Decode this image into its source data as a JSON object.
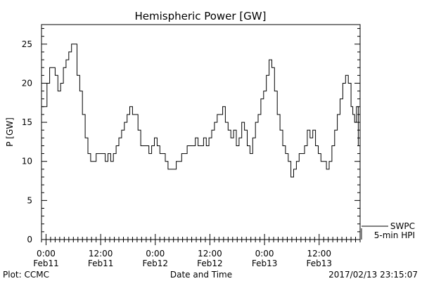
{
  "chart_data": {
    "type": "line",
    "title": "Hemispheric Power [GW]",
    "xlabel": "Date and Time",
    "ylabel": "P [GW]",
    "ylim": [
      0,
      27.5
    ],
    "y_ticks": [
      0,
      5,
      10,
      15,
      20,
      25
    ],
    "x_range_hours": [
      -1,
      69
    ],
    "x_ticks": [
      {
        "hour": 0,
        "time": "0:00",
        "date": "Feb11"
      },
      {
        "hour": 12,
        "time": "12:00",
        "date": "Feb11"
      },
      {
        "hour": 24,
        "time": "0:00",
        "date": "Feb12"
      },
      {
        "hour": 36,
        "time": "12:00",
        "date": "Feb12"
      },
      {
        "hour": 48,
        "time": "0:00",
        "date": "Feb13"
      },
      {
        "hour": 60,
        "time": "12:00",
        "date": "Feb13"
      }
    ],
    "series": [
      {
        "name": "5-min HPI",
        "color": "#000000",
        "x": [
          -1.0,
          -0.4,
          0.2,
          0.8,
          1.4,
          2.0,
          2.6,
          3.2,
          3.8,
          4.4,
          5.0,
          5.6,
          6.2,
          6.8,
          7.4,
          8.0,
          8.6,
          9.2,
          9.8,
          10.4,
          11.0,
          11.5,
          12.0,
          12.5,
          13.0,
          13.6,
          14.2,
          14.8,
          15.4,
          16.0,
          16.6,
          17.2,
          17.8,
          18.4,
          19.0,
          19.6,
          20.2,
          20.8,
          21.4,
          22.0,
          22.6,
          23.2,
          23.8,
          24.4,
          25.0,
          25.6,
          26.2,
          26.8,
          27.4,
          28.0,
          28.6,
          29.2,
          29.8,
          30.4,
          31.0,
          31.6,
          32.2,
          32.8,
          33.4,
          34.0,
          34.6,
          35.2,
          35.8,
          36.4,
          37.0,
          37.6,
          38.2,
          38.8,
          39.4,
          40.0,
          40.6,
          41.2,
          41.8,
          42.4,
          43.0,
          43.6,
          44.2,
          44.8,
          45.4,
          46.0,
          46.6,
          47.2,
          47.8,
          48.4,
          49.0,
          49.6,
          50.2,
          50.8,
          51.4,
          52.0,
          52.6,
          53.2,
          53.8,
          54.4,
          55.0,
          55.6,
          56.2,
          56.8,
          57.4,
          58.0,
          58.6,
          59.2,
          59.8,
          60.4,
          61.0,
          61.6,
          62.2,
          62.8,
          63.4,
          64.0,
          64.6,
          65.2,
          65.8,
          66.4,
          67.0,
          67.4,
          67.8,
          68.2,
          68.6
        ],
        "values": [
          17,
          17,
          20,
          22,
          22,
          21,
          19,
          20,
          22,
          23,
          24,
          25,
          25,
          21,
          19,
          16,
          13,
          11,
          10,
          10,
          11,
          11,
          11,
          11,
          10,
          11,
          10,
          11,
          12,
          13,
          14,
          15,
          16,
          17,
          16,
          16,
          14,
          12,
          12,
          12,
          11,
          12,
          13,
          12,
          11,
          11,
          10,
          9,
          9,
          9,
          10,
          10,
          11,
          11,
          12,
          12,
          12,
          13,
          12,
          12,
          13,
          12,
          13,
          14,
          15,
          16,
          16,
          17,
          15,
          14,
          13,
          14,
          12,
          13,
          15,
          14,
          12,
          11,
          13,
          15,
          16,
          18,
          19,
          21,
          23,
          22,
          19,
          16,
          14,
          12,
          11,
          10,
          8,
          9,
          10,
          11,
          11,
          12,
          14,
          13,
          14,
          12,
          11,
          10,
          10,
          9,
          10,
          12,
          14,
          16,
          18,
          20,
          21,
          20,
          17,
          16,
          15,
          17,
          12
        ]
      }
    ],
    "legend": [
      "SWPC",
      "5-min HPI"
    ],
    "legend_position": "bottom-right"
  },
  "footer": {
    "left": "Plot: CCMC",
    "right": "2017/02/13 23:15:07"
  }
}
